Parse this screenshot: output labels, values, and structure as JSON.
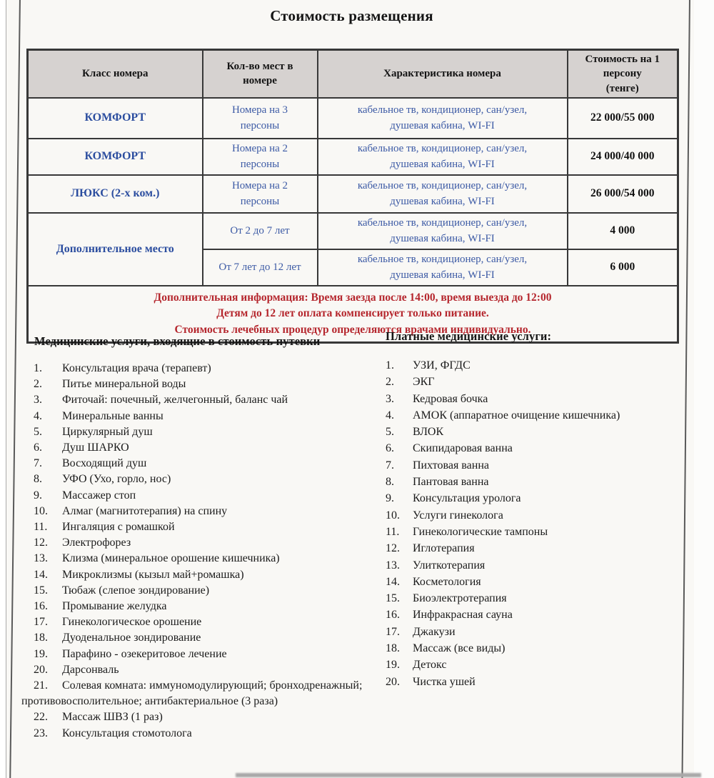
{
  "document_title": "Стоимость размещения",
  "table": {
    "headers": [
      "Класс номера",
      "Кол-во мест в\nномере",
      "Характеристика номера",
      "Стоимость на 1\nперсону\n(тенге)"
    ],
    "rows": [
      {
        "room_class": "КОМФОРТ",
        "rowspan": 1,
        "seats": "Номера на 3\nперсоны",
        "features": "кабельное тв, кондиционер, сан/узел,\nдушевая кабина, WI-FI",
        "price": "22 000/55 000"
      },
      {
        "room_class": "КОМФОРТ",
        "rowspan": 1,
        "seats": "Номера на 2\nперсоны",
        "features": "кабельное тв, кондиционер, сан/узел,\nдушевая кабина, WI-FI",
        "price": "24 000/40 000"
      },
      {
        "room_class": "ЛЮКС (2-х ком.)",
        "rowspan": 1,
        "seats": "Номера на 2\nперсоны",
        "features": "кабельное тв, кондиционер, сан/узел,\nдушевая кабина, WI-FI",
        "price": "26 000/54 000"
      },
      {
        "room_class": "Дополнительное место",
        "rowspan": 2,
        "seats": "От 2 до 7 лет",
        "features": "кабельное тв, кондиционер, сан/узел,\nдушевая кабина, WI-FI",
        "price": "4 000"
      },
      {
        "room_class": null,
        "seats": "От 7 лет до 12 лет",
        "features": "кабельное тв, кондиционер, сан/узел,\nдушевая кабина, WI-FI",
        "price": "6 000"
      }
    ],
    "notes": {
      "label": "Дополнительная информация:",
      "line1": "Время заезда после 14:00, время выезда до 12:00",
      "line2": "Детям до 12 лет оплата компенсирует только питание.",
      "line3": "Стоимость лечебных процедур определяются врачами индивидуально."
    }
  },
  "included_services": {
    "title": "Медицинские услуги, входящие в стоимость путевки",
    "items": [
      "Консультация врача (терапевт)",
      "Питье минеральной воды",
      "Фиточай: почечный, желчегонный, баланс чай",
      "Минеральные ванны",
      "Циркулярный душ",
      "Душ ШАРКО",
      "Восходящий душ",
      "УФО (Ухо, горло, нос)",
      "Массажер стоп",
      "Алмаг (магнитотерапия) на спину",
      "Ингаляция с ромашкой",
      "Электрофорез",
      "Клизма (минеральное орошение кишечника)",
      "Микроклизмы (кызыл май+ромашка)",
      "Тюбаж (слепое зондирование)",
      "Промывание желудка",
      "Гинекологическое орошение",
      "Дуоденальное зондирование",
      "Парафино - озекеритовое лечение",
      "Дарсонваль",
      "Солевая комната: иммуномодулирующий; бронходренажный; противовосполительное; антибактериальное (3 раза)",
      "Массаж ШВЗ (1 раз)",
      "Консультация стомотолога"
    ]
  },
  "paid_services": {
    "title": "Платные медицинские услуги:",
    "items": [
      "УЗИ, ФГДС",
      "ЭКГ",
      "Кедровая бочка",
      "АМОК (аппаратное очищение кишечника)",
      "ВЛОК",
      "Скипидаровая ванна",
      "Пихтовая ванна",
      "Пантовая ванна",
      "Консультация уролога",
      "Услуги гинеколога",
      "Гинекологические тампоны",
      "Иглотерапия",
      "Улиткотерапия",
      "Косметология",
      "Биоэлектротерапия",
      "Инфракрасная сауна",
      "Джакузи",
      "Массаж (все виды)",
      "Детокс",
      "Чистка ушей"
    ]
  },
  "colors": {
    "accent_blue": "#2b4d9f",
    "secondary_blue": "#3c5aa5",
    "note_red": "#b5262d",
    "header_bg": "#d6d2d0"
  }
}
